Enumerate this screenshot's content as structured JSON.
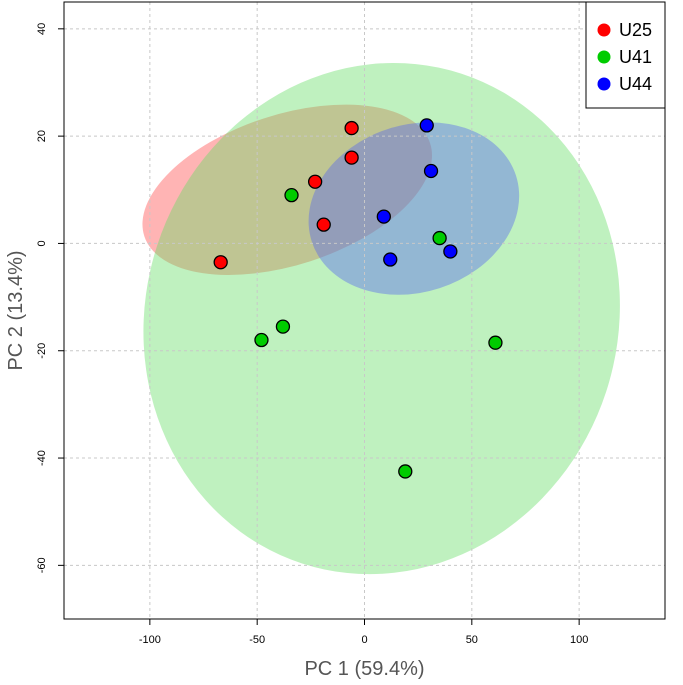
{
  "chart_data": {
    "type": "scatter",
    "title": "",
    "xlabel": "PC 1 (59.4%)",
    "ylabel": "PC 2 (13.4%)",
    "xlim": [
      -140,
      140
    ],
    "ylim": [
      -70,
      45
    ],
    "xticks": [
      -100,
      -50,
      0,
      50,
      100
    ],
    "yticks": [
      40,
      20,
      0,
      -20,
      -40,
      -60
    ],
    "grid": true,
    "legend_position": "top-right",
    "series": [
      {
        "name": "U25",
        "color": "#ff0000",
        "ellipse_fill": "#ff4d4d",
        "points": [
          [
            -67,
            -3.5
          ],
          [
            -23,
            11.5
          ],
          [
            -19,
            3.5
          ],
          [
            -6,
            21.5
          ],
          [
            -6,
            16
          ]
        ],
        "ellipse": {
          "cx": -36,
          "cy": 10,
          "rx": 70,
          "ry": 14,
          "angle_deg": 18
        }
      },
      {
        "name": "U41",
        "color": "#00cc00",
        "ellipse_fill": "#66dd66",
        "points": [
          [
            -34,
            9
          ],
          [
            -48,
            -18
          ],
          [
            -38,
            -15.5
          ],
          [
            35,
            1
          ],
          [
            19,
            -42.5
          ],
          [
            61,
            -18.5
          ]
        ],
        "ellipse": {
          "cx": 8,
          "cy": -14,
          "rx": 110,
          "ry": 48,
          "angle_deg": -18
        }
      },
      {
        "name": "U44",
        "color": "#0000ff",
        "ellipse_fill": "#5566ee",
        "points": [
          [
            29,
            22
          ],
          [
            31,
            13.5
          ],
          [
            9,
            5
          ],
          [
            12,
            -3
          ],
          [
            40,
            -1.5
          ]
        ],
        "ellipse": {
          "cx": 23,
          "cy": 6.5,
          "rx": 39,
          "ry": 20,
          "angle_deg": -72
        }
      }
    ]
  }
}
